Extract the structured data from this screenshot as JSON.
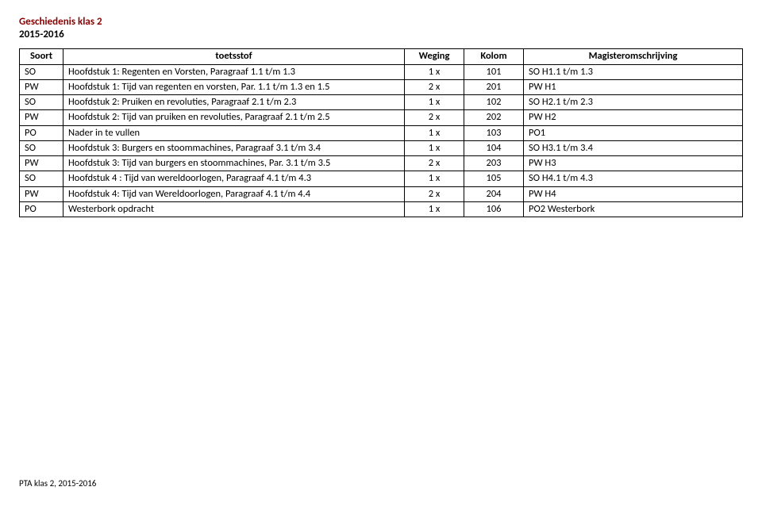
{
  "header": {
    "title": "Geschiedenis klas 2",
    "year": "2015-2016"
  },
  "table": {
    "columns": [
      "Soort",
      "toetsstof",
      "Weging",
      "Kolom",
      "Magisteromschrijving"
    ],
    "rows": [
      {
        "soort": "SO",
        "stof": "Hoofdstuk 1: Regenten en Vorsten, Paragraaf 1.1 t/m 1.3",
        "weging": "1 x",
        "kolom": "101",
        "mag": "SO H1.1 t/m 1.3"
      },
      {
        "soort": "PW",
        "stof": "Hoofdstuk 1: Tijd van regenten en vorsten, Par. 1.1 t/m 1.3 en 1.5",
        "weging": "2 x",
        "kolom": "201",
        "mag": "PW H1"
      },
      {
        "soort": "SO",
        "stof": "Hoofdstuk 2: Pruiken en revoluties, Paragraaf 2.1 t/m 2.3",
        "weging": "1 x",
        "kolom": "102",
        "mag": "SO H2.1 t/m 2.3"
      },
      {
        "soort": "PW",
        "stof": "Hoofdstuk 2: Tijd van pruiken en revoluties, Paragraaf 2.1 t/m 2.5",
        "weging": "2 x",
        "kolom": "202",
        "mag": "PW H2"
      },
      {
        "soort": "PO",
        "stof": "Nader in te vullen",
        "weging": "1 x",
        "kolom": "103",
        "mag": "PO1"
      },
      {
        "soort": "SO",
        "stof": "Hoofdstuk 3: Burgers en stoommachines, Paragraaf 3.1 t/m 3.4",
        "weging": "1 x",
        "kolom": "104",
        "mag": "SO H3.1 t/m 3.4"
      },
      {
        "soort": "PW",
        "stof": "Hoofdstuk 3: Tijd van burgers en stoommachines, Par. 3.1 t/m 3.5",
        "weging": "2 x",
        "kolom": "203",
        "mag": "PW H3"
      },
      {
        "soort": "SO",
        "stof": "Hoofdstuk 4 : Tijd van wereldoorlogen, Paragraaf 4.1 t/m 4.3",
        "weging": "1 x",
        "kolom": "105",
        "mag": "SO H4.1 t/m 4.3"
      },
      {
        "soort": "PW",
        "stof": "Hoofdstuk 4: Tijd van Wereldoorlogen, Paragraaf 4.1 t/m 4.4",
        "weging": "2 x",
        "kolom": "204",
        "mag": "PW H4"
      },
      {
        "soort": "PO",
        "stof": "Westerbork opdracht",
        "weging": "1 x",
        "kolom": "106",
        "mag": "PO2 Westerbork"
      }
    ]
  },
  "footer": "PTA klas 2, 2015-2016",
  "colors": {
    "title": "#8b0000",
    "border": "#000000",
    "background": "#ffffff",
    "text": "#000000"
  },
  "typography": {
    "body_fontsize": 12.5,
    "header_fontsize": 13,
    "footer_fontsize": 11,
    "font_family": "Calibri"
  }
}
